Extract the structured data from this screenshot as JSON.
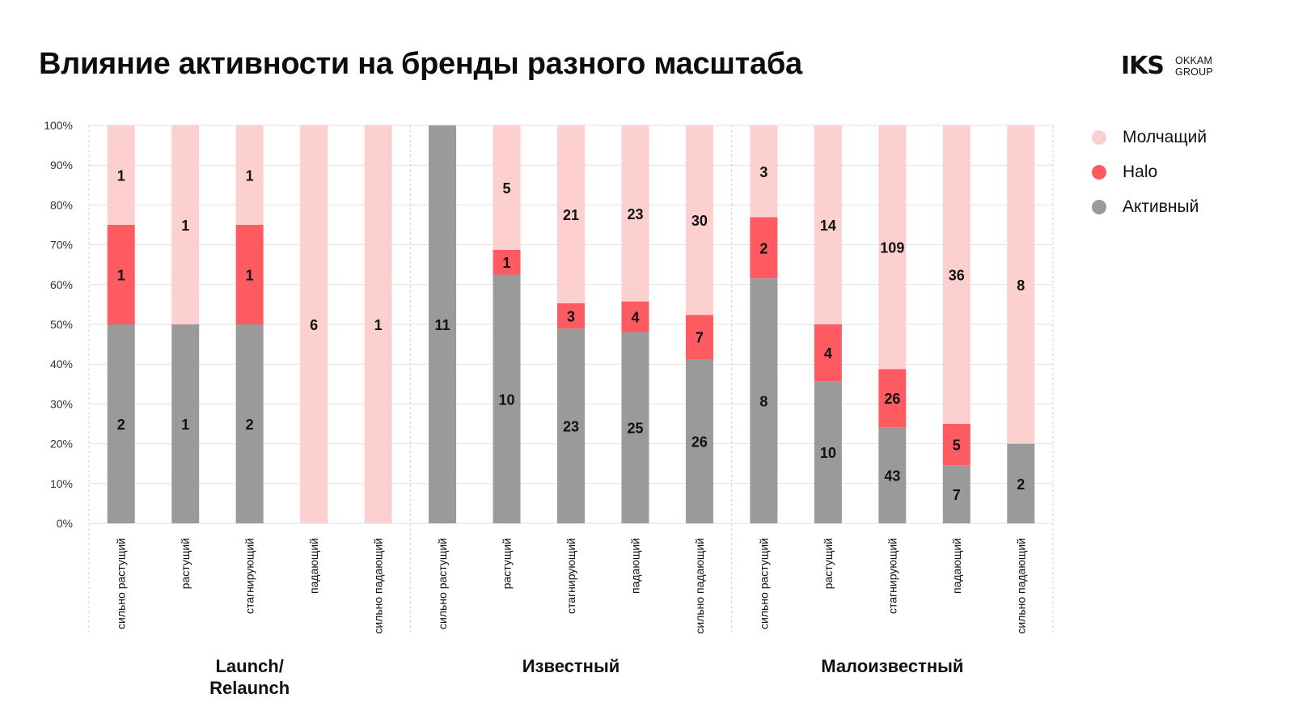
{
  "title": "Влияние активности на бренды разного масштаба",
  "logo": {
    "mark": "IKS",
    "line1": "OKKAM",
    "line2": "GROUP"
  },
  "legend": [
    {
      "label": "Молчащий",
      "color": "#fdd0d0"
    },
    {
      "label": "Halo",
      "color": "#fd5b61"
    },
    {
      "label": "Активный",
      "color": "#9a9a9a"
    }
  ],
  "chart_data": {
    "type": "bar",
    "stacked": true,
    "normalized": true,
    "title": "Влияние активности на бренды разного масштаба",
    "xlabel": "",
    "ylabel": "",
    "ylim": [
      0,
      100
    ],
    "yticks": [
      "0%",
      "10%",
      "20%",
      "30%",
      "40%",
      "50%",
      "60%",
      "70%",
      "80%",
      "90%",
      "100%"
    ],
    "grid": true,
    "legend_position": "top-right",
    "groups": [
      "Launch/ Relaunch",
      "Известный",
      "Малоизвестный"
    ],
    "groups_lines": [
      [
        "Launch/",
        "Relaunch"
      ],
      [
        "Известный"
      ],
      [
        "Малоизвестный"
      ]
    ],
    "categories": [
      "сильно растущий",
      "растущий",
      "стагнирующий",
      "падающий",
      "сильно падающий",
      "сильно растущий",
      "растущий",
      "стагнирующий",
      "падающий",
      "сильно падающий",
      "сильно растущий",
      "растущий",
      "стагнирующий",
      "падающий",
      "сильно падающий"
    ],
    "series": [
      {
        "name": "Активный",
        "color": "#9a9a9a",
        "counts": [
          2,
          1,
          2,
          0,
          0,
          11,
          10,
          23,
          25,
          26,
          8,
          10,
          43,
          7,
          2
        ]
      },
      {
        "name": "Halo",
        "color": "#fd5b61",
        "counts": [
          1,
          0,
          1,
          0,
          0,
          0,
          1,
          3,
          4,
          7,
          2,
          4,
          26,
          5,
          0
        ]
      },
      {
        "name": "Молчащий",
        "color": "#fdd0d0",
        "counts": [
          1,
          1,
          1,
          6,
          1,
          0,
          5,
          21,
          23,
          30,
          3,
          14,
          109,
          36,
          8
        ]
      }
    ]
  }
}
